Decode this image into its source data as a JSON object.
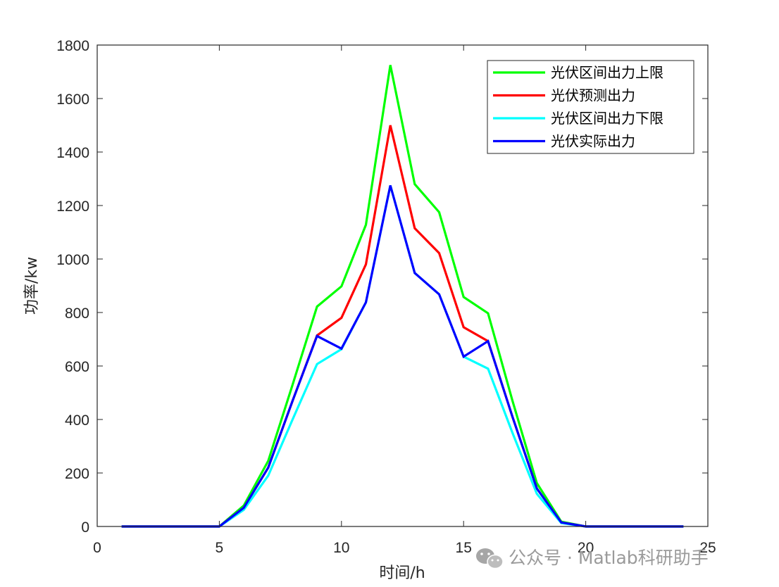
{
  "chart_data": {
    "type": "line",
    "title": "",
    "xlabel": "时间/h",
    "ylabel": "功率/kw",
    "xlim": [
      0,
      25
    ],
    "ylim": [
      0,
      1800
    ],
    "xticks": [
      0,
      5,
      10,
      15,
      20,
      25
    ],
    "yticks": [
      0,
      200,
      400,
      600,
      800,
      1000,
      1200,
      1400,
      1600,
      1800
    ],
    "grid": false,
    "legend_position": "top-right",
    "x": [
      1,
      2,
      3,
      4,
      5,
      6,
      7,
      8,
      9,
      10,
      11,
      12,
      13,
      14,
      15,
      16,
      17,
      18,
      19,
      20,
      21,
      22,
      23,
      24
    ],
    "series": [
      {
        "name": "光伏区间出力上限",
        "color": "#00ff00",
        "values": [
          0,
          0,
          0,
          0,
          0,
          78,
          245,
          530,
          822,
          898,
          1128,
          1725,
          1280,
          1175,
          858,
          797,
          470,
          162,
          18,
          0,
          0,
          0,
          0,
          0
        ]
      },
      {
        "name": "光伏预测出力",
        "color": "#ff0000",
        "values": [
          0,
          0,
          0,
          0,
          0,
          70,
          220,
          470,
          714,
          780,
          980,
          1500,
          1115,
          1022,
          745,
          693,
          410,
          142,
          15,
          0,
          0,
          0,
          0,
          0
        ]
      },
      {
        "name": "光伏区间出力下限",
        "color": "#00ffff",
        "values": [
          0,
          0,
          0,
          0,
          0,
          62,
          190,
          400,
          607,
          663,
          838,
          1275,
          948,
          868,
          635,
          590,
          350,
          122,
          13,
          0,
          0,
          0,
          0,
          0
        ]
      },
      {
        "name": "光伏实际出力",
        "color": "#0000ff",
        "values": [
          0,
          0,
          0,
          0,
          0,
          70,
          220,
          470,
          712,
          665,
          838,
          1275,
          948,
          868,
          635,
          693,
          410,
          142,
          15,
          0,
          0,
          0,
          0,
          0
        ]
      }
    ]
  },
  "watermark": {
    "text": "公众号 · Matlab科研助手",
    "icon": "wechat-icon"
  }
}
